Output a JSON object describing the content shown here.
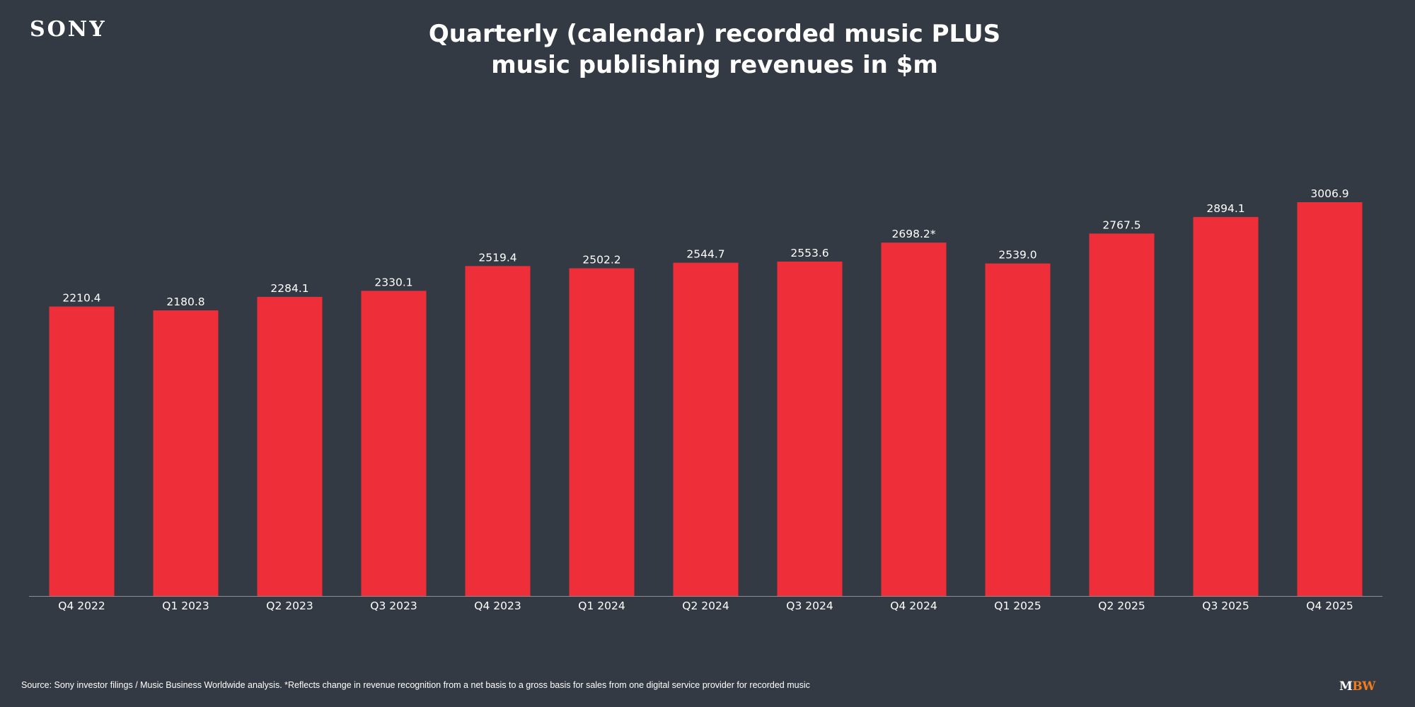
{
  "logo": "SONY",
  "colors": {
    "background": "#343a43",
    "bar": "#ee2e38",
    "axis": "#8a8f96"
  },
  "chart_data": {
    "type": "bar",
    "title_line1": "Quarterly (calendar) recorded music PLUS",
    "title_line2": "music publishing revenues in $m",
    "xlabel": "",
    "ylabel": "",
    "ylim": [
      0,
      3006.9
    ],
    "grid": false,
    "categories": [
      "Q4 2022",
      "Q1 2023",
      "Q2 2023",
      "Q3 2023",
      "Q4 2023",
      "Q1 2024",
      "Q2 2024",
      "Q3 2024",
      "Q4 2024",
      "Q1 2025",
      "Q2 2025",
      "Q3 2025",
      "Q4 2025"
    ],
    "values": [
      2210.4,
      2180.8,
      2284.1,
      2330.1,
      2519.4,
      2502.2,
      2544.7,
      2553.6,
      2698.2,
      2539.0,
      2767.5,
      2894.1,
      3006.9
    ],
    "data_labels": [
      "2210.4",
      "2180.8",
      "2284.1",
      "2330.1",
      "2519.4",
      "2502.2",
      "2544.7",
      "2553.6",
      "2698.2*",
      "2539.0",
      "2767.5",
      "2894.1",
      "3006.9"
    ]
  },
  "footer": {
    "source": "Source: Sony investor filings / Music Business Worldwide analysis. *Reflects change in revenue recognition from a net basis to a gross basis for sales from one digital service provider for recorded music",
    "brand_m": "M",
    "brand_bw": "BW"
  }
}
